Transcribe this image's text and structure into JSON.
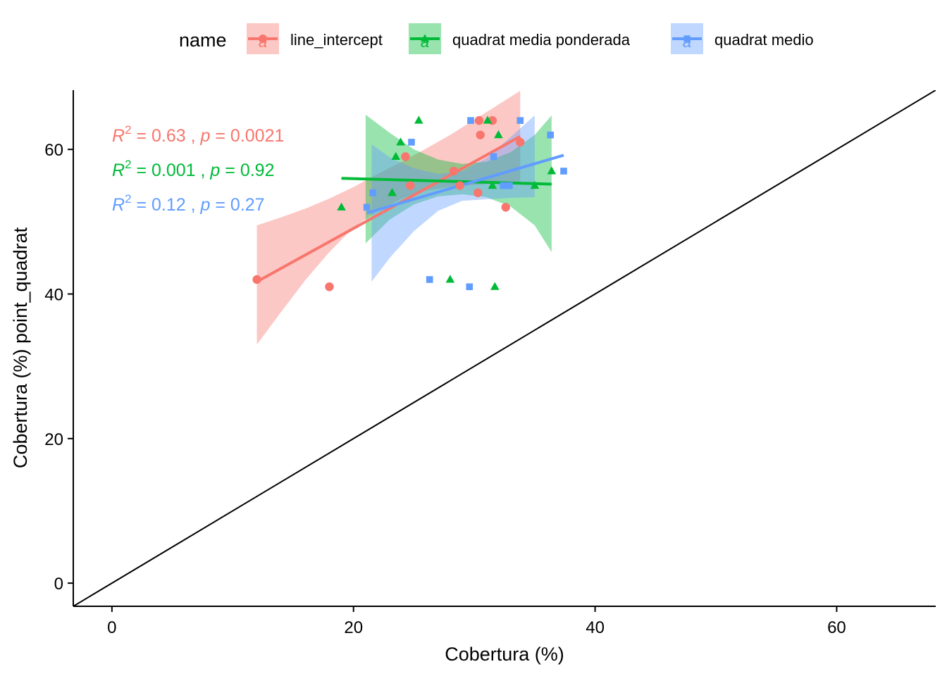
{
  "chart_data": {
    "type": "scatter",
    "xlabel": "Cobertura (%)",
    "ylabel": "Cobertura (%) point_quadrat",
    "xlim": [
      -3.2,
      68.2
    ],
    "ylim": [
      -3.2,
      68.2
    ],
    "x_ticks": [
      0,
      20,
      40,
      60
    ],
    "y_ticks": [
      0,
      20,
      40,
      60
    ],
    "x_tick_labels": [
      "0",
      "20",
      "40",
      "60"
    ],
    "y_tick_labels": [
      "0",
      "20",
      "40",
      "60"
    ],
    "grid": false,
    "reference_line": {
      "type": "identity",
      "color": "#000000"
    },
    "legend": {
      "title": "name",
      "position": "top",
      "entries": [
        {
          "label": "line_intercept",
          "color": "#F8766D",
          "shape": "circle",
          "key_letter": "a"
        },
        {
          "label": "quadrat media ponderada",
          "color": "#00BA38",
          "shape": "triangle",
          "key_letter": "a"
        },
        {
          "label": "quadrat medio",
          "color": "#619CFF",
          "shape": "square",
          "key_letter": "a"
        }
      ]
    },
    "series": [
      {
        "name": "line_intercept",
        "color": "#F8766D",
        "shape": "circle",
        "points": [
          [
            12,
            42
          ],
          [
            18,
            41
          ],
          [
            24.3,
            59
          ],
          [
            24.7,
            55
          ],
          [
            28.3,
            57
          ],
          [
            28.8,
            55
          ],
          [
            30.3,
            54
          ],
          [
            30.4,
            64
          ],
          [
            30.5,
            62
          ],
          [
            31.5,
            64
          ],
          [
            32.6,
            52
          ],
          [
            33.8,
            61
          ]
        ],
        "fit": {
          "x": [
            12,
            33.8
          ],
          "y": [
            41.7,
            61.8
          ]
        },
        "band": {
          "x": [
            12,
            14,
            16,
            18,
            20,
            22,
            24,
            26,
            28,
            30,
            32,
            33.8
          ],
          "lower": [
            33,
            37.5,
            41.9,
            45.8,
            49.2,
            51.5,
            53.2,
            54.3,
            54.8,
            55.1,
            55.3,
            55.5
          ],
          "upper": [
            49.5,
            50.6,
            51.8,
            53.2,
            54.8,
            56.6,
            58.3,
            60.1,
            62,
            64.1,
            66.2,
            68.1
          ]
        },
        "stat_label": {
          "r2": "0.63",
          "p": "0.0021"
        }
      },
      {
        "name": "quadrat media ponderada",
        "color": "#00BA38",
        "shape": "triangle",
        "points": [
          [
            19,
            52
          ],
          [
            23.2,
            54
          ],
          [
            23.5,
            59
          ],
          [
            23.9,
            61
          ],
          [
            25.4,
            64
          ],
          [
            28,
            42
          ],
          [
            31.1,
            64
          ],
          [
            31.5,
            55
          ],
          [
            31.7,
            41
          ],
          [
            32,
            62
          ],
          [
            35,
            55
          ],
          [
            36.4,
            57
          ]
        ],
        "fit": {
          "x": [
            19,
            36.4
          ],
          "y": [
            56,
            55.2
          ]
        },
        "band": {
          "x": [
            21,
            23,
            25,
            27,
            29,
            31,
            33,
            35,
            36.4
          ],
          "lower": [
            47,
            50.3,
            52.4,
            53.5,
            53.8,
            53.4,
            52.1,
            49.5,
            45.8
          ],
          "upper": [
            64.8,
            62.3,
            60,
            58.6,
            58,
            58.3,
            59.6,
            62,
            64.7
          ]
        },
        "stat_label": {
          "r2": "0.001",
          "p": "0.92"
        }
      },
      {
        "name": "quadrat medio",
        "color": "#619CFF",
        "shape": "square",
        "points": [
          [
            21.1,
            52
          ],
          [
            21.6,
            54
          ],
          [
            24.8,
            61
          ],
          [
            26.3,
            42
          ],
          [
            29.6,
            41
          ],
          [
            29.7,
            64
          ],
          [
            31.6,
            59
          ],
          [
            32.4,
            55
          ],
          [
            32.9,
            55
          ],
          [
            33.8,
            64
          ],
          [
            36.3,
            62
          ],
          [
            37.4,
            57
          ]
        ],
        "fit": {
          "x": [
            21.1,
            37.4
          ],
          "y": [
            51.2,
            59.2
          ]
        },
        "band": {
          "x": [
            21.5,
            23,
            25,
            27,
            29,
            31,
            33,
            35
          ],
          "lower": [
            41.7,
            45,
            48.7,
            51.5,
            52.9,
            53.1,
            53.3,
            53.4
          ],
          "upper": [
            60.7,
            58.9,
            57.4,
            56.6,
            57,
            58.8,
            61.7,
            64.7
          ]
        },
        "stat_label": {
          "r2": "0.12",
          "p": "0.27"
        }
      }
    ]
  }
}
